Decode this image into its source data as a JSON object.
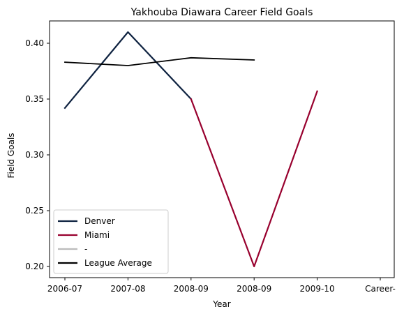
{
  "chart_data": {
    "type": "line",
    "title": "Yakhouba Diawara Career Field Goals",
    "xlabel": "Year",
    "ylabel": "Field Goals",
    "categories": [
      "2006-07",
      "2007-08",
      "2008-09",
      "2008-09",
      "2009-10",
      "Career-"
    ],
    "ylim": [
      0.19,
      0.42
    ],
    "yticks": [
      0.2,
      0.25,
      0.3,
      0.35,
      0.4
    ],
    "ytick_labels": [
      "0.20",
      "0.25",
      "0.30",
      "0.35",
      "0.40"
    ],
    "grid": false,
    "legend_position": "lower-left",
    "series": [
      {
        "name": "Denver",
        "color": "#0e2240",
        "x": [
          0,
          1,
          2
        ],
        "values": [
          0.342,
          0.41,
          0.35
        ]
      },
      {
        "name": "Miami",
        "color": "#98002e",
        "x": [
          2,
          3,
          4
        ],
        "values": [
          0.35,
          0.2,
          0.357
        ]
      },
      {
        "name": "-",
        "color": "#bbbbbb",
        "x": [],
        "values": []
      },
      {
        "name": "League Average",
        "color": "#000000",
        "x": [
          0,
          1,
          2,
          3
        ],
        "values": [
          0.383,
          0.38,
          0.387,
          0.385
        ]
      }
    ]
  }
}
